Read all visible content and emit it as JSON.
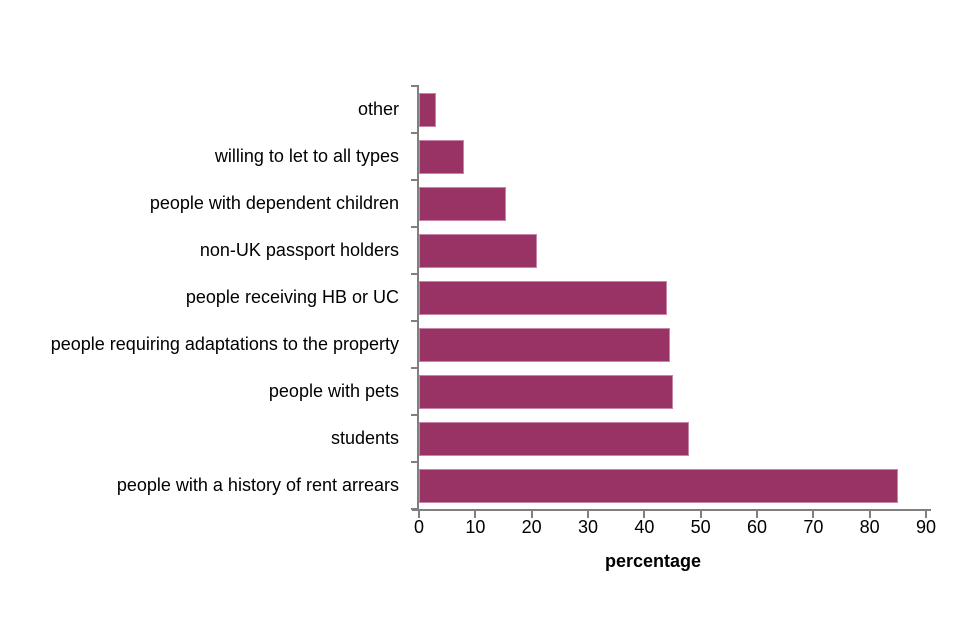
{
  "chart_data": {
    "type": "bar",
    "orientation": "horizontal",
    "title": "",
    "categories": [
      "other",
      "willing to let to all types",
      "people with dependent children",
      "non-UK passport holders",
      "people receiving HB or UC",
      "people requiring adaptations to the property",
      "people with pets",
      "students",
      "people with a history of rent arrears"
    ],
    "values": [
      3,
      8,
      15.5,
      21,
      44,
      44.5,
      45,
      48,
      85
    ],
    "xlabel": "percentage",
    "ylabel": "",
    "xlim": [
      0,
      90
    ],
    "xticks": [
      0,
      10,
      20,
      30,
      40,
      50,
      60,
      70,
      80,
      90
    ],
    "grid": "off",
    "legend": "none",
    "bar_color": "#993366",
    "bar_border_color": "#c783a8",
    "axis_color": "#808080",
    "text_color": "#000000",
    "background_color": "#ffffff"
  }
}
